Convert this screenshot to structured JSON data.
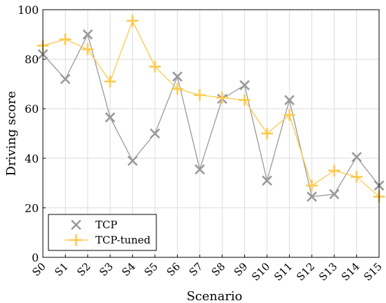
{
  "chart_data": {
    "type": "line",
    "title": "",
    "xlabel": "Scenario",
    "ylabel": "Driving score",
    "ylim": [
      0,
      100
    ],
    "yticks": [
      0,
      20,
      40,
      60,
      80,
      100
    ],
    "grid": true,
    "legend_position": "bottom-left",
    "categories": [
      "S0",
      "S1",
      "S2",
      "S3",
      "S4",
      "S5",
      "S6",
      "S7",
      "S8",
      "S9",
      "S10",
      "S11",
      "S12",
      "S13",
      "S14",
      "S15"
    ],
    "series": [
      {
        "name": "TCP",
        "color": "#999999",
        "marker": "x",
        "values": [
          82,
          72,
          90,
          56.5,
          39,
          50,
          73,
          35.5,
          64,
          69.5,
          31,
          63.5,
          24.5,
          25.5,
          40.5,
          29
        ]
      },
      {
        "name": "TCP-tuned",
        "color": "#fbc94e",
        "marker": "+",
        "values": [
          85.5,
          88,
          84,
          71,
          95.5,
          77,
          68,
          65.5,
          64.5,
          63.5,
          50,
          57.5,
          29,
          35,
          32.5,
          24.5
        ]
      }
    ]
  }
}
